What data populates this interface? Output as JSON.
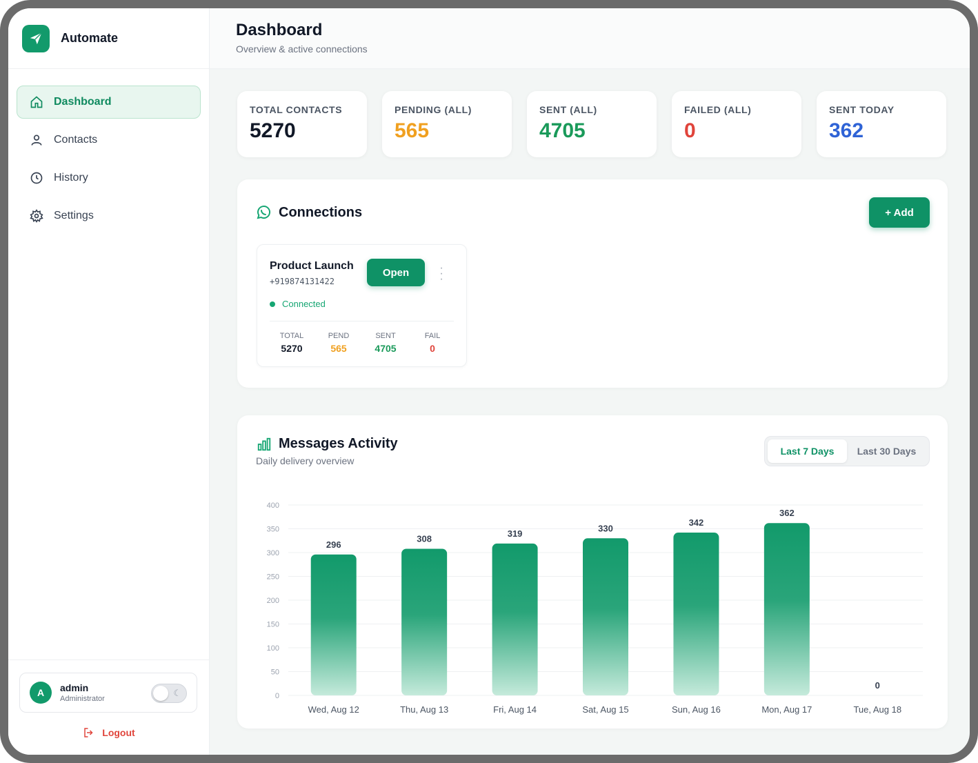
{
  "app": {
    "name": "Automate",
    "brand_color": "#129a6b"
  },
  "sidebar": {
    "items": [
      {
        "label": "Dashboard",
        "icon": "home-icon",
        "active": true
      },
      {
        "label": "Contacts",
        "icon": "user-icon",
        "active": false
      },
      {
        "label": "History",
        "icon": "clock-icon",
        "active": false
      },
      {
        "label": "Settings",
        "icon": "gear-icon",
        "active": false
      }
    ],
    "user": {
      "initial": "A",
      "name": "admin",
      "role": "Administrator",
      "dark_mode": false
    },
    "logout_label": "Logout"
  },
  "header": {
    "title": "Dashboard",
    "subtitle": "Overview & active connections"
  },
  "stats": [
    {
      "label": "TOTAL CONTACTS",
      "value": "5270",
      "color": "#111827"
    },
    {
      "label": "PENDING (ALL)",
      "value": "565",
      "color": "#f0a020"
    },
    {
      "label": "SENT (ALL)",
      "value": "4705",
      "color": "#1a9a5a"
    },
    {
      "label": "FAILED (ALL)",
      "value": "0",
      "color": "#e0443b"
    },
    {
      "label": "SENT TODAY",
      "value": "362",
      "color": "#2f63d6"
    }
  ],
  "connections": {
    "title": "Connections",
    "add_label": "+ Add",
    "items": [
      {
        "name": "Product Launch",
        "phone": "+919874131422",
        "open_label": "Open",
        "status": "Connected",
        "metrics": [
          {
            "label": "TOTAL",
            "value": "5270",
            "color": "#111827"
          },
          {
            "label": "PEND",
            "value": "565",
            "color": "#f0a020"
          },
          {
            "label": "SENT",
            "value": "4705",
            "color": "#1a9a5a"
          },
          {
            "label": "FAIL",
            "value": "0",
            "color": "#e0443b"
          }
        ]
      }
    ]
  },
  "activity": {
    "title": "Messages Activity",
    "subtitle": "Daily delivery overview",
    "ranges": [
      {
        "label": "Last 7 Days",
        "active": true
      },
      {
        "label": "Last 30 Days",
        "active": false
      }
    ]
  },
  "chart_data": {
    "type": "bar",
    "categories": [
      "Wed, Aug 12",
      "Thu, Aug 13",
      "Fri, Aug 14",
      "Sat, Aug 15",
      "Sun, Aug 16",
      "Mon, Aug 17",
      "Tue, Aug 18"
    ],
    "values": [
      296,
      308,
      319,
      330,
      342,
      362,
      0
    ],
    "ylim": [
      0,
      400
    ],
    "yticks": [
      0,
      50,
      100,
      150,
      200,
      250,
      300,
      350,
      400
    ],
    "grid": true,
    "data_labels": true,
    "bar_color_top": "#129a6b",
    "bar_color_bottom": "#c5eadb"
  }
}
